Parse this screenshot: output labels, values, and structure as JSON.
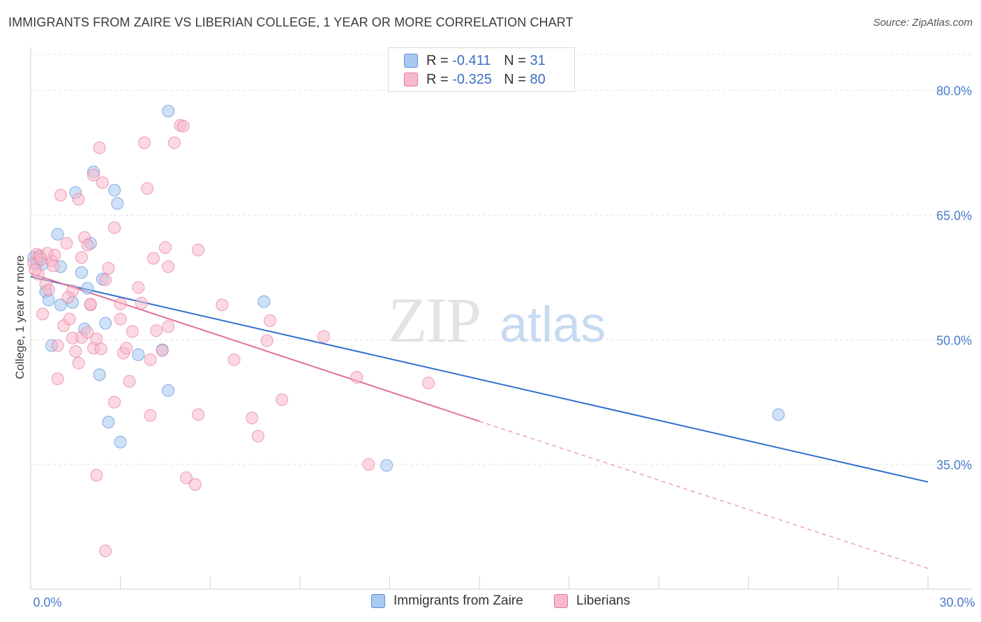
{
  "title": "IMMIGRANTS FROM ZAIRE VS LIBERIAN COLLEGE, 1 YEAR OR MORE CORRELATION CHART",
  "source": "Source: ZipAtlas.com",
  "watermark": {
    "zip": "ZIP",
    "atlas": "atlas"
  },
  "legend": {
    "r_label": "R =",
    "n_label": "N =",
    "rows": [
      {
        "r": "-0.411",
        "n": "31",
        "color": "#a8c8f0",
        "border": "#5a8fd8"
      },
      {
        "r": "-0.325",
        "n": "80",
        "color": "#f7b8cb",
        "border": "#e87aa0"
      }
    ]
  },
  "bottom_legend": [
    {
      "label": "Immigrants from Zaire",
      "color": "#a8c8f0",
      "border": "#5a8fd8"
    },
    {
      "label": "Liberians",
      "color": "#f7b8cb",
      "border": "#e87aa0"
    }
  ],
  "chart_data": {
    "type": "scatter",
    "title": "IMMIGRANTS FROM ZAIRE VS LIBERIAN COLLEGE, 1 YEAR OR MORE CORRELATION CHART",
    "xlabel": "",
    "ylabel": "College, 1 year or more",
    "xlim": [
      0,
      30
    ],
    "ylim": [
      20,
      85
    ],
    "x_tick_labels": [
      "0.0%",
      "30.0%"
    ],
    "y_ticks": [
      35,
      50,
      65,
      80
    ],
    "y_tick_labels": [
      "35.0%",
      "50.0%",
      "65.0%",
      "80.0%"
    ],
    "grid": true,
    "series": [
      {
        "name": "Immigrants from Zaire",
        "color": "#a8c8f0",
        "stroke": "#5a8fd8",
        "line_color": "#2f6fcf",
        "trend": {
          "x": [
            0,
            30
          ],
          "y": [
            57.6,
            32.9
          ]
        },
        "points": [
          [
            0.1,
            59.9
          ],
          [
            0.2,
            59.2
          ],
          [
            0.3,
            60.0
          ],
          [
            0.4,
            59.1
          ],
          [
            0.5,
            55.8
          ],
          [
            0.6,
            54.8
          ],
          [
            0.7,
            49.3
          ],
          [
            0.9,
            62.7
          ],
          [
            1.0,
            54.2
          ],
          [
            1.0,
            58.8
          ],
          [
            1.4,
            54.5
          ],
          [
            1.5,
            67.7
          ],
          [
            1.7,
            58.1
          ],
          [
            1.8,
            51.3
          ],
          [
            1.9,
            56.2
          ],
          [
            2.0,
            61.6
          ],
          [
            2.1,
            70.2
          ],
          [
            2.3,
            45.8
          ],
          [
            2.4,
            57.3
          ],
          [
            2.5,
            52.0
          ],
          [
            2.6,
            40.1
          ],
          [
            2.8,
            68.0
          ],
          [
            2.9,
            66.4
          ],
          [
            3.0,
            37.7
          ],
          [
            3.6,
            48.2
          ],
          [
            4.4,
            48.8
          ],
          [
            4.6,
            43.9
          ],
          [
            4.6,
            77.5
          ],
          [
            7.8,
            54.6
          ],
          [
            11.9,
            34.9
          ],
          [
            25.0,
            41.0
          ]
        ]
      },
      {
        "name": "Liberians",
        "color": "#f7b8cb",
        "stroke": "#e87aa0",
        "line_color": "#e0709a",
        "trend": {
          "x": [
            0,
            15
          ],
          "y": [
            58.0,
            40.2
          ]
        },
        "trend_dashed": {
          "x": [
            15,
            30
          ],
          "y": [
            40.2,
            22.5
          ]
        },
        "points": [
          [
            0.1,
            59.2
          ],
          [
            0.2,
            60.3
          ],
          [
            0.25,
            57.9
          ],
          [
            0.3,
            60.1
          ],
          [
            0.4,
            53.1
          ],
          [
            0.5,
            56.7
          ],
          [
            0.6,
            56.0
          ],
          [
            0.7,
            59.5
          ],
          [
            0.8,
            60.2
          ],
          [
            0.9,
            49.3
          ],
          [
            0.9,
            45.3
          ],
          [
            1.0,
            67.4
          ],
          [
            1.1,
            51.7
          ],
          [
            1.2,
            61.6
          ],
          [
            1.3,
            52.5
          ],
          [
            1.4,
            50.2
          ],
          [
            1.4,
            55.9
          ],
          [
            1.5,
            48.6
          ],
          [
            1.6,
            66.9
          ],
          [
            1.6,
            47.2
          ],
          [
            1.7,
            59.9
          ],
          [
            1.7,
            50.3
          ],
          [
            1.8,
            62.3
          ],
          [
            1.9,
            61.4
          ],
          [
            1.9,
            50.9
          ],
          [
            2.0,
            54.2
          ],
          [
            2.0,
            54.3
          ],
          [
            2.1,
            49.0
          ],
          [
            2.1,
            69.8
          ],
          [
            2.2,
            50.1
          ],
          [
            2.2,
            33.7
          ],
          [
            2.3,
            73.1
          ],
          [
            2.4,
            68.9
          ],
          [
            2.5,
            57.2
          ],
          [
            2.5,
            24.6
          ],
          [
            2.6,
            58.6
          ],
          [
            2.8,
            63.5
          ],
          [
            2.8,
            42.5
          ],
          [
            3.0,
            52.5
          ],
          [
            3.0,
            54.3
          ],
          [
            3.1,
            48.4
          ],
          [
            3.2,
            49.0
          ],
          [
            3.4,
            51.0
          ],
          [
            3.6,
            56.3
          ],
          [
            3.7,
            54.4
          ],
          [
            3.8,
            73.7
          ],
          [
            3.9,
            68.2
          ],
          [
            4.0,
            40.9
          ],
          [
            4.0,
            47.6
          ],
          [
            4.1,
            59.8
          ],
          [
            4.2,
            51.1
          ],
          [
            4.4,
            48.7
          ],
          [
            4.5,
            61.1
          ],
          [
            4.6,
            58.8
          ],
          [
            4.6,
            51.6
          ],
          [
            4.8,
            73.7
          ],
          [
            5.0,
            75.8
          ],
          [
            5.1,
            75.7
          ],
          [
            5.2,
            33.4
          ],
          [
            5.5,
            32.6
          ],
          [
            5.6,
            41.0
          ],
          [
            5.6,
            60.8
          ],
          [
            6.4,
            54.2
          ],
          [
            6.8,
            47.6
          ],
          [
            7.4,
            40.6
          ],
          [
            7.6,
            38.4
          ],
          [
            7.9,
            49.9
          ],
          [
            8.0,
            52.3
          ],
          [
            8.4,
            42.8
          ],
          [
            9.8,
            50.4
          ],
          [
            10.9,
            45.5
          ],
          [
            11.3,
            35.0
          ],
          [
            13.3,
            44.8
          ],
          [
            0.15,
            58.4
          ],
          [
            0.35,
            59.7
          ],
          [
            0.55,
            60.4
          ],
          [
            0.75,
            58.9
          ],
          [
            1.25,
            55.1
          ],
          [
            2.35,
            48.9
          ],
          [
            3.3,
            45.0
          ]
        ]
      }
    ]
  }
}
